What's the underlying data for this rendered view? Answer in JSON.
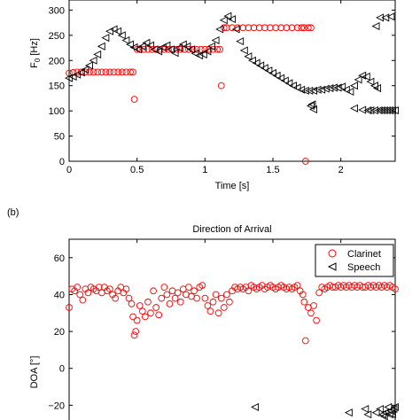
{
  "chart_data": [
    {
      "type": "scatter",
      "title": "",
      "xlabel": "Time [s]",
      "ylabel": "F",
      "ylabel_sub": "0",
      "ylabel_unit": " [Hz]",
      "xlim": [
        0,
        2.4
      ],
      "ylim": [
        0,
        320
      ],
      "xticks": [
        0,
        0.5,
        1,
        1.5,
        2
      ],
      "xtick_labels": [
        "0",
        "0.5",
        "1",
        "1.5",
        "2"
      ],
      "yticks": [
        0,
        50,
        100,
        150,
        200,
        250,
        300
      ],
      "ytick_labels": [
        "0",
        "50",
        "100",
        "150",
        "200",
        "250",
        "300"
      ],
      "grid": false,
      "series": [
        {
          "marker": "circle",
          "color": "#ff0000",
          "x": [
            0.0,
            0.03,
            0.06,
            0.09,
            0.12,
            0.15,
            0.18,
            0.21,
            0.24,
            0.27,
            0.3,
            0.33,
            0.36,
            0.39,
            0.42,
            0.45,
            0.47,
            0.48,
            0.5,
            0.52,
            0.55,
            0.58,
            0.61,
            0.64,
            0.67,
            0.7,
            0.73,
            0.76,
            0.79,
            0.82,
            0.85,
            0.88,
            0.91,
            0.94,
            0.97,
            1.0,
            1.03,
            1.06,
            1.09,
            1.11,
            1.12,
            1.14,
            1.16,
            1.2,
            1.24,
            1.28,
            1.32,
            1.36,
            1.4,
            1.44,
            1.48,
            1.52,
            1.56,
            1.6,
            1.64,
            1.68,
            1.71,
            1.73,
            1.74,
            1.76,
            1.78
          ],
          "y": [
            175,
            176,
            177,
            177,
            177,
            177,
            177,
            177,
            177,
            177,
            177,
            177,
            177,
            177,
            177,
            177,
            177,
            123,
            222,
            222,
            222,
            222,
            222,
            222,
            222,
            222,
            222,
            222,
            222,
            222,
            222,
            222,
            222,
            222,
            222,
            222,
            222,
            222,
            222,
            222,
            150,
            265,
            265,
            265,
            265,
            265,
            265,
            265,
            265,
            265,
            265,
            265,
            265,
            265,
            265,
            265,
            265,
            265,
            0,
            265,
            265
          ]
        },
        {
          "marker": "triangle-left",
          "color": "#000000",
          "x": [
            0.0,
            0.03,
            0.06,
            0.09,
            0.12,
            0.15,
            0.18,
            0.21,
            0.24,
            0.27,
            0.3,
            0.33,
            0.36,
            0.39,
            0.42,
            0.45,
            0.48,
            0.51,
            0.54,
            0.57,
            0.6,
            0.63,
            0.66,
            0.69,
            0.72,
            0.75,
            0.78,
            0.81,
            0.84,
            0.87,
            0.9,
            0.93,
            0.96,
            0.99,
            1.02,
            1.05,
            1.08,
            1.11,
            1.14,
            1.17,
            1.2,
            1.23,
            1.26,
            1.29,
            1.32,
            1.35,
            1.38,
            1.41,
            1.44,
            1.47,
            1.5,
            1.53,
            1.56,
            1.59,
            1.62,
            1.65,
            1.68,
            1.71,
            1.74,
            1.77,
            1.8,
            1.83,
            1.86,
            1.89,
            1.92,
            1.95,
            1.98,
            2.01,
            2.04,
            2.07,
            2.1,
            2.13,
            2.16,
            2.19,
            2.22,
            2.25,
            2.27,
            1.8,
            1.79,
            1.78,
            2.1,
            2.16,
            2.2,
            2.22,
            2.25,
            2.28,
            2.3,
            2.32,
            2.34,
            2.36,
            2.38,
            2.4,
            2.26,
            2.29,
            2.33,
            2.37
          ],
          "y": [
            165,
            168,
            172,
            176,
            182,
            190,
            200,
            212,
            228,
            245,
            258,
            262,
            258,
            250,
            240,
            232,
            226,
            222,
            228,
            235,
            230,
            222,
            218,
            226,
            230,
            222,
            215,
            225,
            232,
            228,
            222,
            214,
            210,
            212,
            218,
            228,
            240,
            262,
            280,
            288,
            282,
            262,
            238,
            220,
            208,
            200,
            195,
            190,
            185,
            180,
            175,
            170,
            165,
            160,
            155,
            150,
            146,
            142,
            140,
            140,
            140,
            142,
            142,
            144,
            145,
            146,
            146,
            148,
            142,
            138,
            150,
            162,
            170,
            168,
            158,
            150,
            145,
            103,
            113,
            110,
            105,
            102,
            101,
            101,
            101,
            101,
            101,
            101,
            101,
            101,
            101,
            101,
            268,
            285,
            285,
            287
          ]
        }
      ]
    },
    {
      "type": "scatter",
      "title": "Direction of Arrival",
      "xlabel": "",
      "ylabel": "DOA [°]",
      "ylim": [
        -28,
        70
      ],
      "yticks": [
        -20,
        0,
        20,
        40,
        60
      ],
      "ytick_labels": [
        "−20",
        "0",
        "20",
        "40",
        "60"
      ],
      "xlim": [
        0,
        2.4
      ],
      "grid": false,
      "legend": {
        "placement": "top-right",
        "entries": [
          "Clarinet",
          "Speech"
        ]
      },
      "series": [
        {
          "name": "Clarinet",
          "marker": "circle",
          "color": "#ff0000",
          "x": [
            0.0,
            0.02,
            0.04,
            0.06,
            0.08,
            0.1,
            0.12,
            0.14,
            0.16,
            0.18,
            0.2,
            0.22,
            0.24,
            0.26,
            0.28,
            0.3,
            0.32,
            0.34,
            0.36,
            0.38,
            0.4,
            0.42,
            0.44,
            0.46,
            0.47,
            0.48,
            0.49,
            0.5,
            0.52,
            0.54,
            0.56,
            0.58,
            0.6,
            0.62,
            0.64,
            0.66,
            0.68,
            0.7,
            0.72,
            0.74,
            0.76,
            0.78,
            0.8,
            0.82,
            0.84,
            0.86,
            0.88,
            0.9,
            0.92,
            0.94,
            0.96,
            0.98,
            1.0,
            1.02,
            1.04,
            1.06,
            1.08,
            1.1,
            1.12,
            1.14,
            1.16,
            1.18,
            1.2,
            1.22,
            1.24,
            1.26,
            1.28,
            1.3,
            1.32,
            1.34,
            1.36,
            1.38,
            1.4,
            1.42,
            1.44,
            1.46,
            1.48,
            1.5,
            1.52,
            1.54,
            1.56,
            1.58,
            1.6,
            1.62,
            1.64,
            1.66,
            1.68,
            1.7,
            1.72,
            1.73,
            1.74,
            1.76,
            1.78,
            1.8,
            1.82,
            1.84,
            1.86,
            1.88,
            1.9,
            1.92,
            1.94,
            1.96,
            1.98,
            2.0,
            2.02,
            2.04,
            2.06,
            2.08,
            2.1,
            2.12,
            2.14,
            2.16,
            2.18,
            2.2,
            2.22,
            2.24,
            2.26,
            2.28,
            2.3,
            2.32,
            2.34,
            2.36,
            2.38,
            2.4
          ],
          "y": [
            33,
            43,
            42,
            44,
            40,
            37,
            43,
            41,
            44,
            43,
            42,
            44,
            41,
            44,
            42,
            43,
            40,
            38,
            42,
            44,
            41,
            43,
            38,
            35,
            28,
            18,
            20,
            26,
            34,
            31,
            28,
            36,
            30,
            42,
            33,
            29,
            38,
            44,
            40,
            35,
            42,
            38,
            41,
            36,
            43,
            40,
            44,
            39,
            42,
            38,
            44,
            45,
            38,
            34,
            31,
            36,
            40,
            30,
            38,
            33,
            40,
            36,
            42,
            44,
            43,
            44,
            43,
            44,
            42,
            45,
            44,
            43,
            44,
            45,
            43,
            44,
            45,
            44,
            43,
            44,
            45,
            44,
            43,
            44,
            43,
            44,
            45,
            42,
            40,
            36,
            15,
            33,
            30,
            34,
            26,
            41,
            44,
            43,
            44,
            45,
            44,
            44,
            45,
            44,
            45,
            44,
            45,
            44,
            45,
            44,
            45,
            44,
            44,
            45,
            44,
            45,
            44,
            45,
            44,
            45,
            44,
            45,
            44,
            43
          ]
        },
        {
          "name": "Speech",
          "marker": "triangle-left",
          "color": "#000000",
          "x": [
            1.37,
            2.06,
            2.18,
            2.2,
            2.26,
            2.29,
            2.31,
            2.33,
            2.35,
            2.37,
            2.38,
            2.39,
            2.4,
            2.32,
            2.36
          ],
          "y": [
            -21,
            -24,
            -22,
            -25,
            -24,
            -22,
            -25,
            -24,
            -21,
            -23,
            -25,
            -22,
            -21,
            -26,
            -25
          ]
        }
      ]
    }
  ],
  "panel_label_b": "(b)"
}
